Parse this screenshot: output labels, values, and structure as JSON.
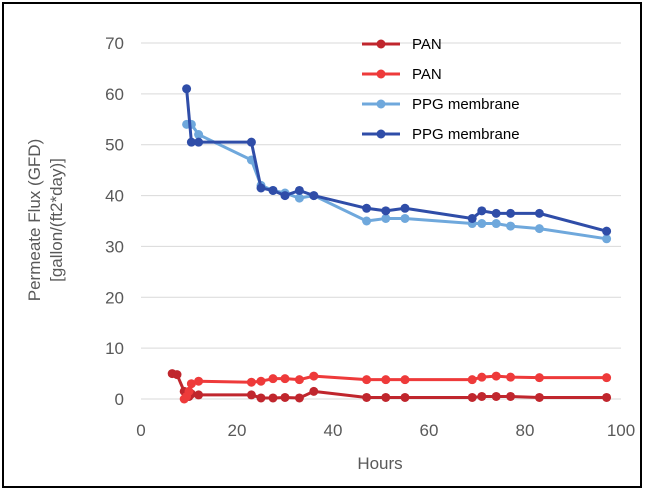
{
  "chart_data": {
    "type": "line",
    "xlabel": "Hours",
    "ylabel_lines": [
      "Permeate Flux (GFD)",
      "[gallon/(ft2*day)]"
    ],
    "xlim": [
      0,
      100
    ],
    "ylim": [
      0,
      70
    ],
    "xticks": [
      0,
      20,
      40,
      60,
      80,
      100
    ],
    "yticks": [
      0,
      10,
      20,
      30,
      40,
      50,
      60,
      70
    ],
    "grid": "horizontal",
    "legend_position": "top-right",
    "series": [
      {
        "name": "PAN",
        "color": "#c0262d",
        "x": [
          6.5,
          7.5,
          9,
          9.5,
          10,
          10.5,
          12,
          23,
          25,
          27.5,
          30,
          33,
          36,
          47,
          51,
          55,
          69,
          71,
          74,
          77,
          83,
          97
        ],
        "y": [
          5,
          4.8,
          1.5,
          0.5,
          0.5,
          1,
          0.8,
          0.8,
          0.2,
          0.2,
          0.3,
          0.2,
          1.5,
          0.3,
          0.3,
          0.3,
          0.3,
          0.5,
          0.5,
          0.5,
          0.3,
          0.3
        ]
      },
      {
        "name": "PAN",
        "color": "#ee3a3a",
        "x": [
          9,
          9.5,
          10,
          10.5,
          12,
          23,
          25,
          27.5,
          30,
          33,
          36,
          47,
          51,
          55,
          69,
          71,
          74,
          77,
          83,
          97
        ],
        "y": [
          0,
          0.5,
          1.5,
          3,
          3.5,
          3.3,
          3.5,
          4,
          4,
          3.8,
          4.5,
          3.8,
          3.8,
          3.8,
          3.8,
          4.3,
          4.5,
          4.3,
          4.2,
          4.2
        ]
      },
      {
        "name": "PPG membrane",
        "color": "#6fa8dc",
        "x": [
          9.5,
          10.5,
          12,
          23,
          25,
          27.5,
          30,
          33,
          36,
          47,
          51,
          55,
          69,
          71,
          74,
          77,
          83,
          97
        ],
        "y": [
          54,
          54,
          52,
          47,
          42,
          41,
          40.5,
          39.5,
          40,
          35,
          35.5,
          35.5,
          34.5,
          34.5,
          34.5,
          34,
          33.5,
          31.5
        ]
      },
      {
        "name": "PPG membrane",
        "color": "#2f4da8",
        "x": [
          9.5,
          10.5,
          12,
          23,
          25,
          27.5,
          30,
          33,
          36,
          47,
          51,
          55,
          69,
          71,
          74,
          77,
          83,
          97
        ],
        "y": [
          61,
          50.5,
          50.5,
          50.5,
          41.5,
          41,
          40,
          41,
          40,
          37.5,
          37,
          37.5,
          35.5,
          37,
          36.5,
          36.5,
          36.5,
          33
        ]
      }
    ]
  }
}
